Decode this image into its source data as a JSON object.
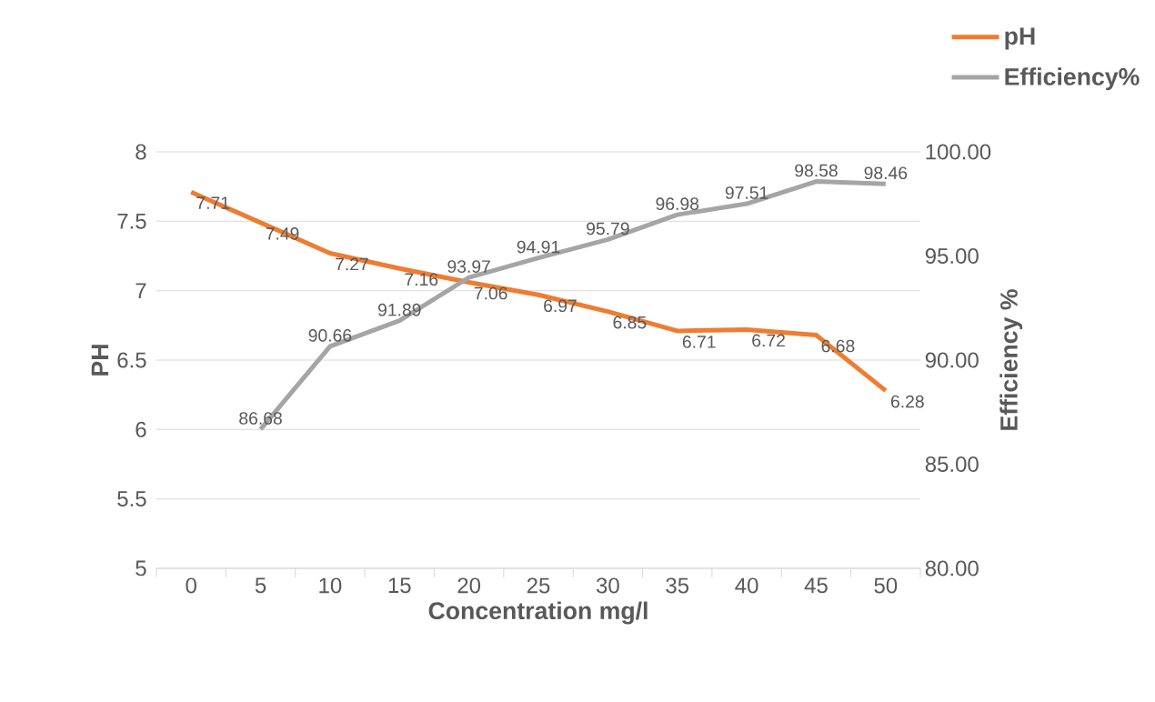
{
  "chart_data": {
    "type": "line",
    "xlabel": "Concentration mg/l",
    "ylabel": "PH",
    "y2label": "Efficiency  %",
    "categories": [
      "0",
      "5",
      "10",
      "15",
      "20",
      "25",
      "30",
      "35",
      "40",
      "45",
      "50"
    ],
    "series": [
      {
        "name": "pH",
        "color": "#ed7d31",
        "values": [
          7.71,
          7.49,
          7.27,
          7.16,
          7.06,
          6.97,
          6.85,
          6.71,
          6.72,
          6.68,
          6.28
        ]
      },
      {
        "name": "Efficiency%",
        "color": "#a5a5a5",
        "axis": "y2",
        "values": [
          null,
          86.68,
          90.66,
          91.89,
          93.97,
          94.91,
          95.79,
          96.98,
          97.51,
          98.58,
          98.46
        ]
      }
    ],
    "ylim": [
      5,
      8
    ],
    "yticks": [
      5,
      5.5,
      6,
      6.5,
      7,
      7.5,
      8
    ],
    "y2lim": [
      80,
      100
    ],
    "y2ticks": [
      {
        "value": 80,
        "label": "80.00"
      },
      {
        "value": 85,
        "label": "85.00"
      },
      {
        "value": 90,
        "label": "90.00"
      },
      {
        "value": 95,
        "label": "95.00"
      },
      {
        "value": 100,
        "label": "100.00"
      }
    ],
    "grid": "y",
    "legend": "top right",
    "data_labels": true
  }
}
